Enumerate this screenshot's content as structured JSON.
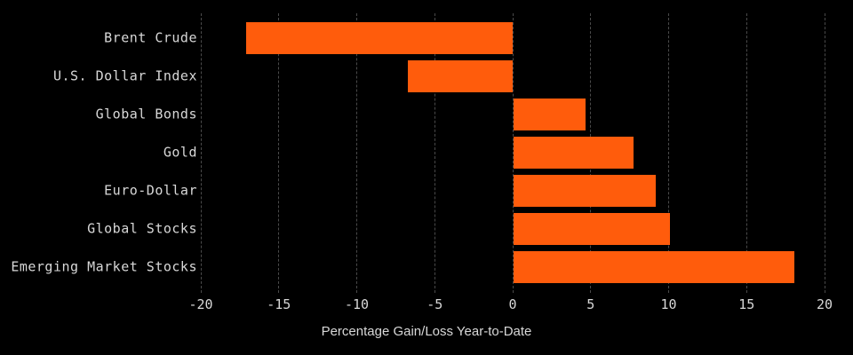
{
  "chart_data": {
    "type": "bar",
    "orientation": "horizontal",
    "title": "",
    "xlabel": "Percentage Gain/Loss Year-to-Date",
    "ylabel": "",
    "categories": [
      "Brent Crude",
      "U.S. Dollar Index",
      "Global Bonds",
      "Gold",
      "Euro-Dollar",
      "Global Stocks",
      "Emerging Market Stocks"
    ],
    "values": [
      -17.1,
      -6.7,
      4.6,
      7.7,
      9.1,
      10.0,
      18.0
    ],
    "xticks": [
      -20,
      -15,
      -10,
      -5,
      0,
      5,
      10,
      15,
      20
    ],
    "xlim": [
      -20,
      20
    ],
    "grid": "vertical-dashed",
    "legend": "none",
    "bar_color": "#FF5C0C",
    "background_color": "#000000",
    "text_color": "#D8D8D8",
    "gridline_color": "#4A4A4A"
  }
}
